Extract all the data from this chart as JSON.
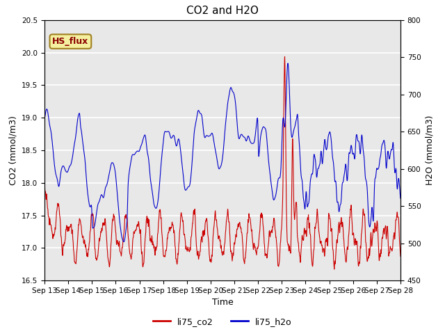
{
  "title": "CO2 and H2O",
  "xlabel": "Time",
  "ylabel_left": "CO2 (mmol/m3)",
  "ylabel_right": "H2O (mmol/m3)",
  "ylim_left": [
    16.5,
    20.5
  ],
  "ylim_right": [
    450,
    800
  ],
  "yticks_left": [
    16.5,
    17.0,
    17.5,
    18.0,
    18.5,
    19.0,
    19.5,
    20.0,
    20.5
  ],
  "yticks_right": [
    450,
    500,
    550,
    600,
    650,
    700,
    750,
    800
  ],
  "xtick_labels": [
    "Sep 13",
    "Sep 14",
    "Sep 15",
    "Sep 16",
    "Sep 17",
    "Sep 18",
    "Sep 19",
    "Sep 20",
    "Sep 21",
    "Sep 22",
    "Sep 23",
    "Sep 24",
    "Sep 25",
    "Sep 26",
    "Sep 27",
    "Sep 28"
  ],
  "label_box_text": "HS_flux",
  "label_box_facecolor": "#f5f0a0",
  "label_box_edgecolor": "#a08020",
  "label_box_textcolor": "#8b0000",
  "legend_labels": [
    "li75_co2",
    "li75_h2o"
  ],
  "legend_colors": [
    "#cc0000",
    "#0000cc"
  ],
  "line_color_co2": "#cc0000",
  "line_color_h2o": "#0000cc",
  "background_color": "#e8e8e8",
  "grid_color": "#ffffff",
  "n_points": 2000,
  "n_days": 15
}
